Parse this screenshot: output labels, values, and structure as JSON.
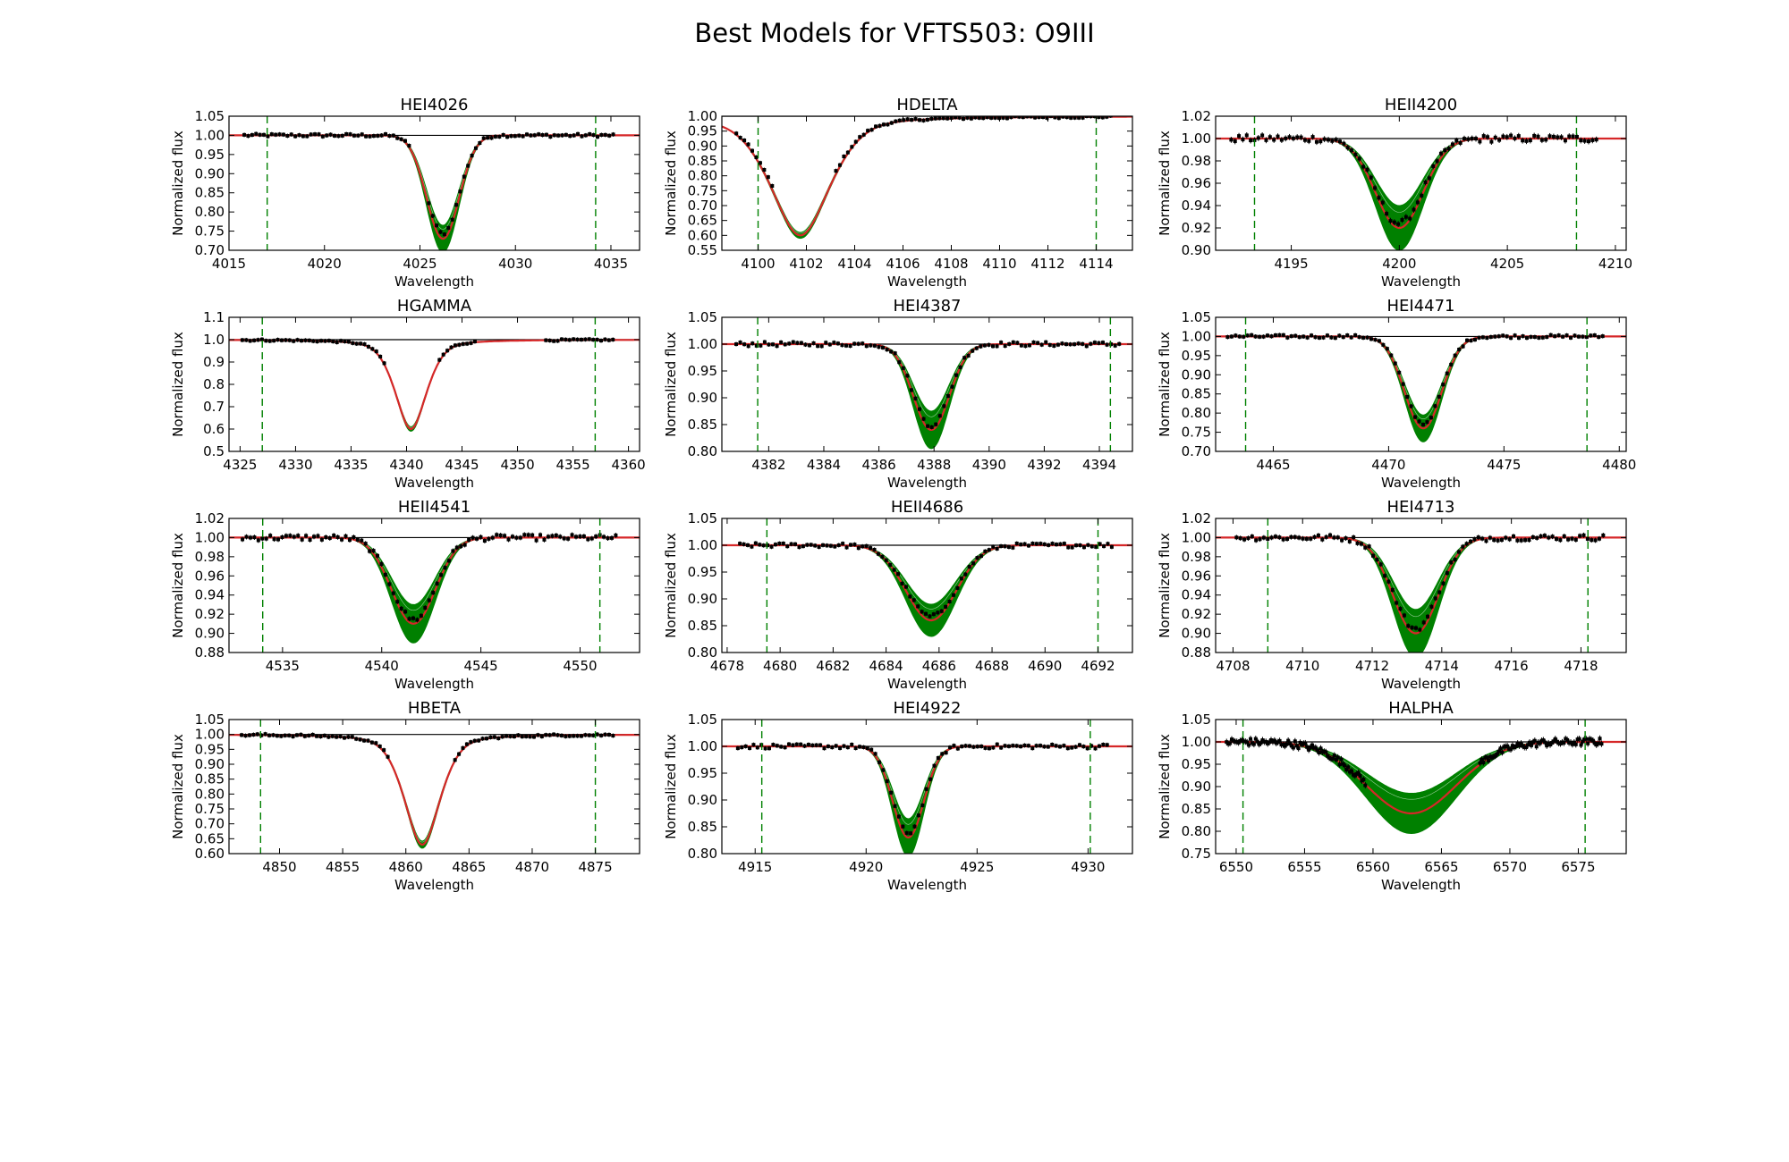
{
  "figure": {
    "title": "Best Models for VFTS503: O9III",
    "xlabel": "Wavelength",
    "ylabel": "Normalized flux"
  },
  "colors": {
    "model_band": "#008000",
    "best_model": "#d62728",
    "continuum": "#000000",
    "fit_window": "#008000",
    "data": "#000000"
  },
  "chart_data": [
    {
      "type": "line",
      "title": "HEI4026",
      "xlim": [
        4015,
        4036.5
      ],
      "ylim": [
        0.7,
        1.05
      ],
      "xticks": [
        4015,
        4020,
        4025,
        4030,
        4035
      ],
      "yticks": [
        "0.70",
        "0.75",
        "0.80",
        "0.85",
        "0.90",
        "0.95",
        "1.00",
        "1.05"
      ],
      "window": [
        4017,
        4034.2
      ],
      "center": 4026.2,
      "depth": 0.27,
      "width": 0.85,
      "band": 0.035,
      "noise": 0.004,
      "gaps": [
        [
          4024.5,
          4025.4
        ]
      ]
    },
    {
      "type": "line",
      "title": "HDELTA",
      "xlim": [
        4098.5,
        4115.5
      ],
      "ylim": [
        0.55,
        1.0
      ],
      "xticks": [
        4100,
        4102,
        4104,
        4106,
        4108,
        4110,
        4112,
        4114
      ],
      "yticks": [
        "0.55",
        "0.60",
        "0.65",
        "0.70",
        "0.75",
        "0.80",
        "0.85",
        "0.90",
        "0.95",
        "1.00"
      ],
      "window": [
        4100,
        4114
      ],
      "center": 4101.75,
      "depth": 0.4,
      "width": 1.3,
      "lorentz": true,
      "band": 0.01,
      "noise": 0.004,
      "gaps": [
        [
          4100.6,
          4103.2
        ]
      ]
    },
    {
      "type": "line",
      "title": "HEII4200",
      "xlim": [
        4191.5,
        4210.5
      ],
      "ylim": [
        0.9,
        1.02
      ],
      "xticks": [
        4195,
        4200,
        4205,
        4210
      ],
      "yticks": [
        "0.90",
        "0.92",
        "0.94",
        "0.96",
        "0.98",
        "1.00",
        "1.02"
      ],
      "window": [
        4193.3,
        4208.2
      ],
      "center": 4200.0,
      "depth": 0.08,
      "width": 1.1,
      "band": 0.02,
      "noise": 0.003,
      "gaps": []
    },
    {
      "type": "line",
      "title": "HGAMMA",
      "xlim": [
        4324,
        4361
      ],
      "ylim": [
        0.5,
        1.1
      ],
      "xticks": [
        4325,
        4330,
        4335,
        4340,
        4345,
        4350,
        4355,
        4360
      ],
      "yticks": [
        "0.5",
        "0.6",
        "0.7",
        "0.8",
        "0.9",
        "1.0",
        "1.1"
      ],
      "window": [
        4327,
        4357
      ],
      "center": 4340.4,
      "depth": 0.4,
      "width": 1.5,
      "lorentz": true,
      "band": 0.01,
      "noise": 0.004,
      "gaps": [
        [
          4338.2,
          4342.8
        ],
        [
          4346.5,
          4352.5
        ]
      ]
    },
    {
      "type": "line",
      "title": "HEI4387",
      "xlim": [
        4380.3,
        4395.2
      ],
      "ylim": [
        0.8,
        1.05
      ],
      "xticks": [
        4382,
        4384,
        4386,
        4388,
        4390,
        4392,
        4394
      ],
      "yticks": [
        "0.80",
        "0.85",
        "0.90",
        "0.95",
        "1.00",
        "1.05"
      ],
      "window": [
        4381.6,
        4394.4
      ],
      "center": 4387.9,
      "depth": 0.16,
      "width": 0.65,
      "band": 0.035,
      "noise": 0.004,
      "gaps": []
    },
    {
      "type": "line",
      "title": "HEI4471",
      "xlim": [
        4462.5,
        4480.3
      ],
      "ylim": [
        0.7,
        1.05
      ],
      "xticks": [
        4465,
        4470,
        4475,
        4480
      ],
      "yticks": [
        "0.70",
        "0.75",
        "0.80",
        "0.85",
        "0.90",
        "0.95",
        "1.00",
        "1.05"
      ],
      "window": [
        4463.8,
        4478.6
      ],
      "center": 4471.5,
      "depth": 0.24,
      "width": 0.8,
      "band": 0.035,
      "noise": 0.004,
      "gaps": []
    },
    {
      "type": "line",
      "title": "HEII4541",
      "xlim": [
        4532.3,
        4553
      ],
      "ylim": [
        0.88,
        1.02
      ],
      "xticks": [
        4535,
        4540,
        4545,
        4550
      ],
      "yticks": [
        "0.88",
        "0.90",
        "0.92",
        "0.94",
        "0.96",
        "0.98",
        "1.00",
        "1.02"
      ],
      "window": [
        4534,
        4551
      ],
      "center": 4541.6,
      "depth": 0.09,
      "width": 1.1,
      "band": 0.02,
      "noise": 0.003,
      "gaps": []
    },
    {
      "type": "line",
      "title": "HEII4686",
      "xlim": [
        4677.8,
        4693.3
      ],
      "ylim": [
        0.8,
        1.05
      ],
      "xticks": [
        4678,
        4680,
        4682,
        4684,
        4686,
        4688,
        4690,
        4692
      ],
      "yticks": [
        "0.80",
        "0.85",
        "0.90",
        "0.95",
        "1.00",
        "1.05"
      ],
      "window": [
        4679.5,
        4692
      ],
      "center": 4685.7,
      "depth": 0.14,
      "width": 0.95,
      "band": 0.03,
      "noise": 0.004,
      "gaps": []
    },
    {
      "type": "line",
      "title": "HEI4713",
      "xlim": [
        4707.5,
        4719.3
      ],
      "ylim": [
        0.88,
        1.02
      ],
      "xticks": [
        4708,
        4710,
        4712,
        4714,
        4716,
        4718
      ],
      "yticks": [
        "0.88",
        "0.90",
        "0.92",
        "0.94",
        "0.96",
        "0.98",
        "1.00",
        "1.02"
      ],
      "window": [
        4709,
        4718.2
      ],
      "center": 4713.25,
      "depth": 0.1,
      "width": 0.65,
      "band": 0.025,
      "noise": 0.003,
      "gaps": []
    },
    {
      "type": "line",
      "title": "HBETA",
      "xlim": [
        4846,
        4878.5
      ],
      "ylim": [
        0.6,
        1.05
      ],
      "xticks": [
        4850,
        4855,
        4860,
        4865,
        4870,
        4875
      ],
      "yticks": [
        "0.60",
        "0.65",
        "0.70",
        "0.75",
        "0.80",
        "0.85",
        "0.90",
        "0.95",
        "1.00",
        "1.05"
      ],
      "window": [
        4848.5,
        4875
      ],
      "center": 4861.3,
      "depth": 0.37,
      "width": 1.5,
      "lorentz": true,
      "band": 0.012,
      "noise": 0.004,
      "gaps": [
        [
          4858.8,
          4863.8
        ]
      ]
    },
    {
      "type": "line",
      "title": "HEI4922",
      "xlim": [
        4913.5,
        4932
      ],
      "ylim": [
        0.8,
        1.05
      ],
      "xticks": [
        4915,
        4920,
        4925,
        4930
      ],
      "yticks": [
        "0.80",
        "0.85",
        "0.90",
        "0.95",
        "1.00",
        "1.05"
      ],
      "window": [
        4915.3,
        4930.1
      ],
      "center": 4921.9,
      "depth": 0.17,
      "width": 0.7,
      "band": 0.035,
      "noise": 0.004,
      "gaps": []
    },
    {
      "type": "line",
      "title": "HALPHA",
      "xlim": [
        6548.5,
        6578.5
      ],
      "ylim": [
        0.75,
        1.05
      ],
      "xticks": [
        6550,
        6555,
        6560,
        6565,
        6570,
        6575
      ],
      "yticks": [
        "0.75",
        "0.80",
        "0.85",
        "0.90",
        "0.95",
        "1.00",
        "1.05"
      ],
      "window": [
        6550.5,
        6575.5
      ],
      "center": 6562.8,
      "depth": 0.16,
      "width": 3.3,
      "band": 0.045,
      "noise": 0.008,
      "gaps": [
        [
          6559.5,
          6567.8
        ]
      ],
      "dense": true
    }
  ]
}
